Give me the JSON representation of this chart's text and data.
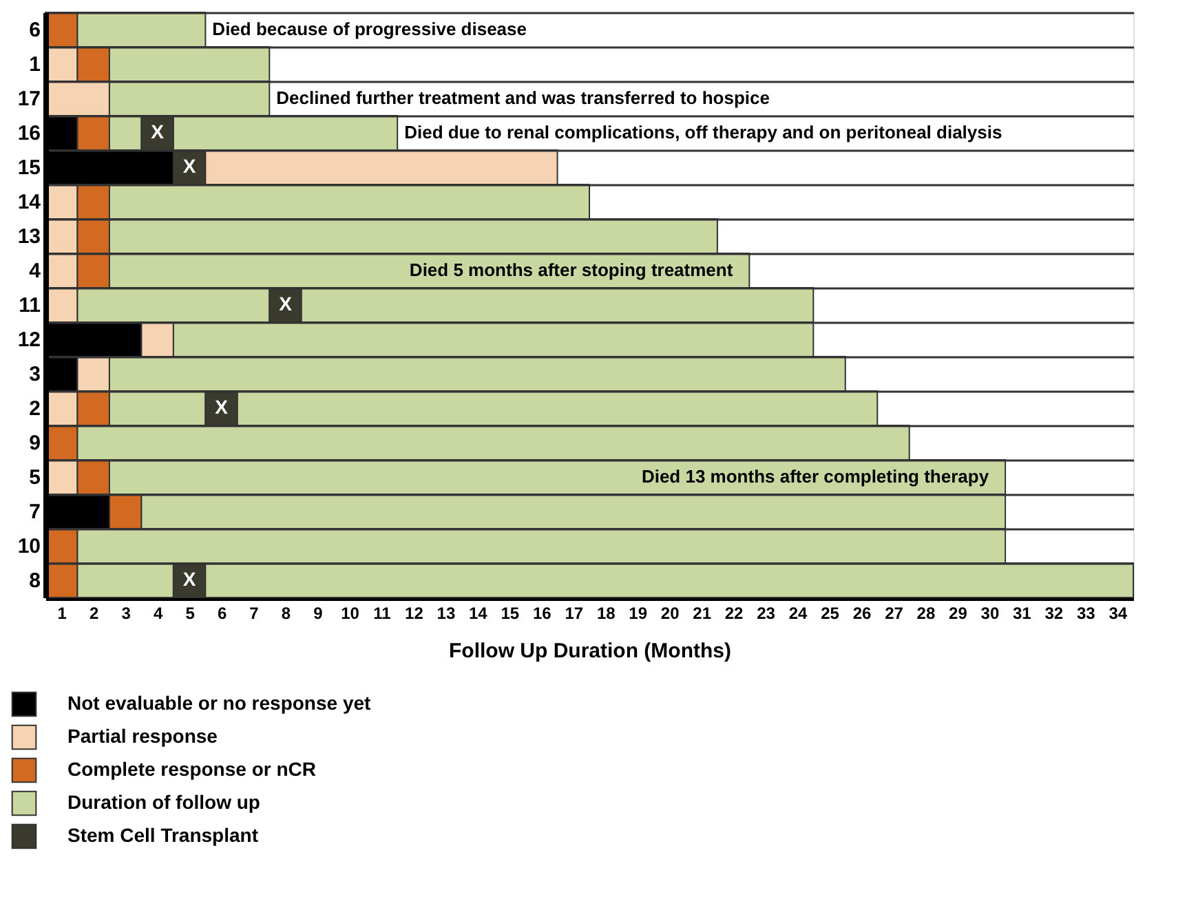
{
  "chart_data": {
    "type": "bar",
    "orientation": "horizontal",
    "stacked": true,
    "xlabel": "Follow Up Duration (Months)",
    "categories": [
      "6",
      "1",
      "17",
      "16",
      "15",
      "14",
      "13",
      "4",
      "11",
      "12",
      "3",
      "2",
      "9",
      "5",
      "7",
      "10",
      "8"
    ],
    "series": [
      {
        "name": "Not evaluable or no response yet",
        "color": "#000000",
        "values": [
          null,
          null,
          null,
          1,
          4,
          null,
          null,
          null,
          null,
          3,
          1,
          null,
          null,
          null,
          2,
          null,
          null
        ]
      },
      {
        "name": "Partial response",
        "color": "#f5d3b3",
        "values": [
          null,
          1,
          2,
          null,
          null,
          1,
          1,
          1,
          1,
          1,
          1,
          1,
          null,
          1,
          null,
          null,
          null
        ]
      },
      {
        "name": "Complete response or nCR",
        "color": "#d26a21",
        "values": [
          1,
          1,
          null,
          1,
          null,
          1,
          1,
          1,
          null,
          null,
          null,
          1,
          1,
          1,
          1,
          1,
          1
        ]
      },
      {
        "name": "Duration of follow up",
        "color": "#c9d7a0",
        "values": [
          4,
          5,
          5,
          1,
          null,
          15,
          19,
          20,
          6,
          20,
          23,
          3,
          26,
          28,
          27,
          29,
          3
        ]
      },
      {
        "name": "Stem Cell Transplant",
        "color": "#3b3a2e",
        "values": [
          null,
          null,
          null,
          1,
          1,
          null,
          null,
          null,
          1,
          null,
          null,
          1,
          null,
          null,
          null,
          null,
          1
        ],
        "value_labels": [
          null,
          null,
          null,
          "X",
          "X",
          null,
          null,
          null,
          "X",
          null,
          null,
          "X",
          null,
          null,
          null,
          null,
          "X"
        ]
      },
      {
        "color": "#f5d3b3",
        "values": [
          null,
          null,
          null,
          null,
          11,
          null,
          null,
          null,
          null,
          null,
          null,
          null,
          null,
          null,
          null,
          null,
          null
        ]
      },
      {
        "color": "#c9d7a0",
        "values": [
          null,
          null,
          null,
          7,
          null,
          null,
          null,
          null,
          16,
          null,
          null,
          20,
          null,
          null,
          null,
          null,
          29
        ]
      }
    ],
    "xlim": [
      0,
      34
    ],
    "xticks": [
      {
        "value": 0.5,
        "label": "1"
      },
      {
        "value": 1.5,
        "label": "2"
      },
      {
        "value": 2.5,
        "label": "3"
      },
      {
        "value": 3.5,
        "label": "4"
      },
      {
        "value": 4.5,
        "label": "5"
      },
      {
        "value": 5.5,
        "label": "6"
      },
      {
        "value": 6.5,
        "label": "7"
      },
      {
        "value": 7.5,
        "label": "8"
      },
      {
        "value": 8.5,
        "label": "9"
      },
      {
        "value": 9.5,
        "label": "10"
      },
      {
        "value": 10.5,
        "label": "11"
      },
      {
        "value": 11.5,
        "label": "12"
      },
      {
        "value": 12.5,
        "label": "13"
      },
      {
        "value": 13.5,
        "label": "14"
      },
      {
        "value": 14.5,
        "label": "15"
      },
      {
        "value": 15.5,
        "label": "16"
      },
      {
        "value": 16.5,
        "label": "17"
      },
      {
        "value": 17.5,
        "label": "18"
      },
      {
        "value": 18.5,
        "label": "19"
      },
      {
        "value": 19.5,
        "label": "20"
      },
      {
        "value": 20.5,
        "label": "21"
      },
      {
        "value": 21.5,
        "label": "22"
      },
      {
        "value": 22.5,
        "label": "23"
      },
      {
        "value": 23.5,
        "label": "24"
      },
      {
        "value": 24.5,
        "label": "25"
      },
      {
        "value": 25.5,
        "label": "26"
      },
      {
        "value": 26.5,
        "label": "27"
      },
      {
        "value": 27.5,
        "label": "28"
      },
      {
        "value": 28.5,
        "label": "29"
      },
      {
        "value": 29.5,
        "label": "30"
      },
      {
        "value": 30.5,
        "label": "31"
      },
      {
        "value": 31.5,
        "label": "32"
      },
      {
        "value": 32.5,
        "label": "33"
      },
      {
        "value": 33.5,
        "label": "34"
      }
    ],
    "grid": "y",
    "legend": "bottom left",
    "annotations": [
      {
        "text": "Died because of progressive disease",
        "x": 5,
        "y": "6"
      },
      {
        "text": "Declined further treatment and was transferred to hospice",
        "x": 7,
        "y": "17"
      },
      {
        "text": "Died due to renal complications, off therapy and on peritoneal dialysis",
        "x": 11,
        "y": "16"
      },
      {
        "text": "Died 5 months after stoping treatment",
        "x": 22,
        "y": "4"
      },
      {
        "text": "Died 13 months after completing therapy",
        "x": 30,
        "y": "5"
      }
    ]
  }
}
